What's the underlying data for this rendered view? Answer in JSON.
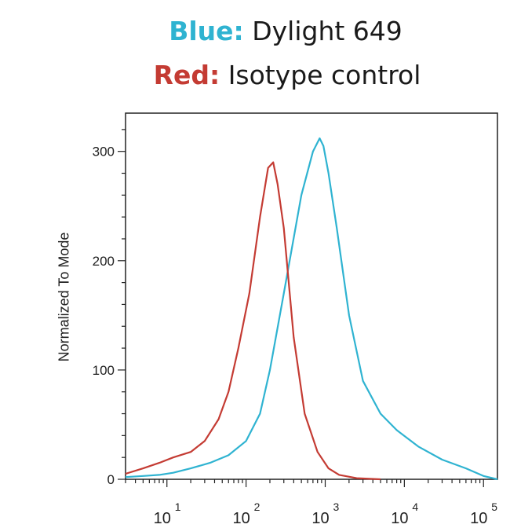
{
  "legend": {
    "blue_key": "Blue:",
    "blue_text": " Dylight 649",
    "red_key": "Red:",
    "red_text": " Isotype control"
  },
  "colors": {
    "blue": "#2fb3d1",
    "red": "#c43b33",
    "axis": "#222222"
  },
  "chart_data": {
    "type": "line",
    "ylabel": "Normalized To Mode",
    "xscale": "log",
    "xlim": [
      3,
      150000
    ],
    "ylim": [
      0,
      335
    ],
    "y_ticks": [
      0,
      100,
      200,
      300
    ],
    "x_tick_base": "10",
    "x_tick_exponents": [
      "1",
      "2",
      "3",
      "4",
      "5"
    ],
    "grid": false,
    "series": [
      {
        "name": "Dylight 649",
        "color": "blue",
        "x": [
          3,
          5,
          8,
          12,
          20,
          35,
          60,
          100,
          150,
          200,
          300,
          500,
          700,
          850,
          950,
          1100,
          1400,
          2000,
          3000,
          5000,
          8000,
          15000,
          30000,
          60000,
          100000,
          150000
        ],
        "y": [
          2,
          3,
          4,
          6,
          10,
          15,
          22,
          35,
          60,
          100,
          170,
          260,
          300,
          312,
          305,
          280,
          230,
          150,
          90,
          60,
          45,
          30,
          18,
          10,
          3,
          0
        ]
      },
      {
        "name": "Isotype control",
        "color": "red",
        "x": [
          3,
          5,
          8,
          12,
          20,
          30,
          45,
          60,
          80,
          110,
          150,
          190,
          220,
          250,
          300,
          400,
          550,
          800,
          1100,
          1500,
          2500,
          5000
        ],
        "y": [
          5,
          10,
          15,
          20,
          25,
          35,
          55,
          80,
          120,
          170,
          240,
          285,
          290,
          270,
          230,
          130,
          60,
          25,
          10,
          4,
          1,
          0
        ]
      }
    ]
  }
}
